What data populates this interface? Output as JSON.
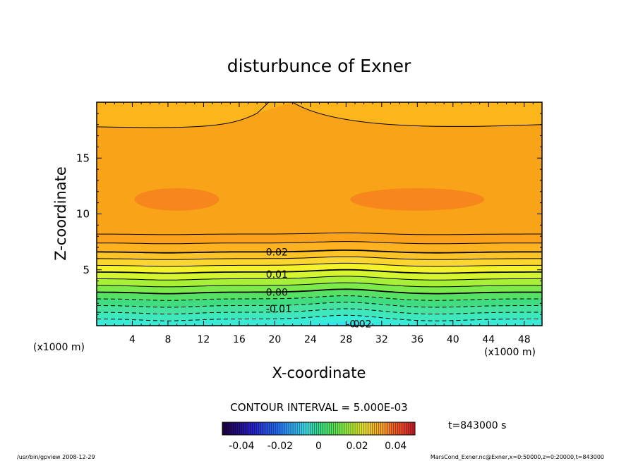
{
  "chart_data": {
    "type": "heatmap",
    "title": "disturbunce of Exner",
    "xlabel": "X-coordinate",
    "ylabel": "Z-coordinate",
    "x_unit": "(x1000 m)",
    "y_unit": "(x1000 m)",
    "xlim": [
      0,
      50
    ],
    "ylim": [
      0,
      20
    ],
    "x_ticks": [
      4,
      8,
      12,
      16,
      20,
      24,
      28,
      32,
      36,
      40,
      44,
      48
    ],
    "y_ticks": [
      5,
      10,
      15
    ],
    "contour_interval_label": "CONTOUR INTERVAL = 5.000E-03",
    "contour_interval": 0.005,
    "contour_labels": [
      {
        "text": "0.02",
        "x": 19,
        "z": 6.6
      },
      {
        "text": "0.01",
        "x": 19,
        "z": 4.6
      },
      {
        "text": "0.00",
        "x": 19,
        "z": 3.0
      },
      {
        "text": "-0.01",
        "x": 19,
        "z": 1.5
      },
      {
        "text": "-0.02",
        "x": 28,
        "z": 0.15
      },
      {
        "text": "0",
        "x": 28.8,
        "z": 0.15
      }
    ],
    "colorbar": {
      "ticks": [
        "-0.04",
        "-0.02",
        "0",
        "0.02",
        "0.04"
      ],
      "range": [
        -0.05,
        0.05
      ]
    },
    "time_label": "t=843000 s",
    "footer_left": "/usr/bin/gpview   2008-12-29",
    "footer_right": "MarsCond_Exner.nc@Exner,x=0:50000,z=0:20000,t=843000"
  }
}
